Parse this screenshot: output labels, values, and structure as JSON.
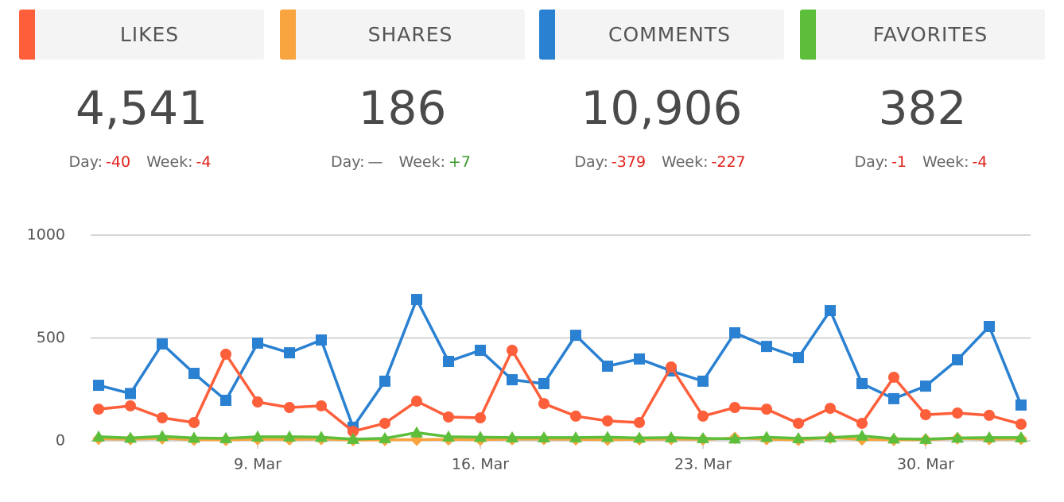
{
  "stats": [
    {
      "title": "LIKES",
      "color": "#fe5f3b",
      "total": "4,541",
      "day_label": "Day:",
      "day": "-40",
      "week_label": "Week:",
      "week": "-4"
    },
    {
      "title": "SHARES",
      "color": "#f8a43f",
      "total": "186",
      "day_label": "Day:",
      "day": "—",
      "week_label": "Week:",
      "week": "+7"
    },
    {
      "title": "COMMENTS",
      "color": "#2a80d1",
      "total": "10,906",
      "day_label": "Day:",
      "day": "-379",
      "week_label": "Week:",
      "week": "-227"
    },
    {
      "title": "FAVORITES",
      "color": "#5dbe3c",
      "total": "382",
      "day_label": "Day:",
      "day": "-1",
      "week_label": "Week:",
      "week": "-4"
    }
  ],
  "chart_data": {
    "type": "line",
    "categories": [
      null,
      null,
      null,
      null,
      null,
      "9. Mar",
      null,
      null,
      null,
      null,
      null,
      null,
      "16. Mar",
      null,
      null,
      null,
      null,
      null,
      null,
      "23. Mar",
      null,
      null,
      null,
      null,
      null,
      null,
      "30. Mar",
      null,
      null,
      null
    ],
    "ylim": [
      0,
      1000
    ],
    "yticks": [
      0,
      500,
      1000
    ],
    "grid": true,
    "series": [
      {
        "color": "#2a80d1",
        "marker": "square",
        "values": [
          270,
          230,
          471,
          328,
          197,
          475,
          428,
          490,
          66,
          290,
          687,
          386,
          440,
          297,
          278,
          513,
          363,
          398,
          340,
          290,
          525,
          459,
          405,
          633,
          278,
          205,
          266,
          394,
          556,
          174
        ]
      },
      {
        "color": "#fe5f3b",
        "marker": "circle",
        "values": [
          154,
          170,
          112,
          89,
          421,
          189,
          162,
          170,
          46,
          85,
          193,
          116,
          112,
          440,
          181,
          120,
          97,
          89,
          359,
          120,
          162,
          154,
          85,
          158,
          85,
          309,
          127,
          135,
          124,
          81
        ]
      },
      {
        "color": "#f8a43f",
        "marker": "diamond",
        "values": [
          10,
          8,
          12,
          6,
          5,
          8,
          7,
          9,
          4,
          5,
          6,
          7,
          6,
          8,
          9,
          7,
          6,
          7,
          9,
          7,
          14,
          8,
          5,
          15,
          7,
          5,
          6,
          12,
          8,
          10
        ]
      },
      {
        "color": "#5dbe3c",
        "marker": "triangle",
        "values": [
          20,
          14,
          22,
          14,
          12,
          20,
          20,
          18,
          8,
          12,
          40,
          20,
          18,
          16,
          16,
          16,
          18,
          14,
          16,
          12,
          10,
          18,
          12,
          16,
          24,
          10,
          8,
          14,
          16,
          16
        ]
      }
    ]
  }
}
